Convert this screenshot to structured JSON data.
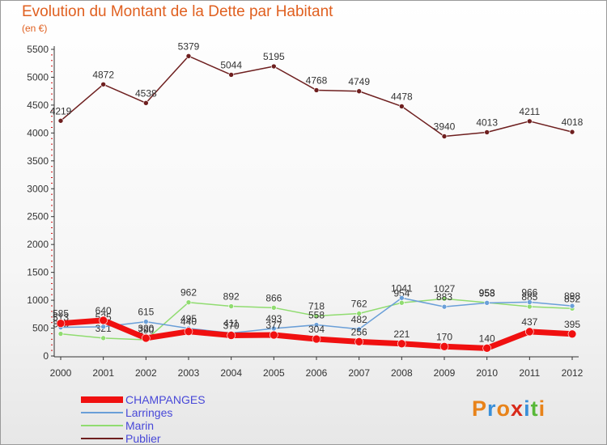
{
  "title": "Evolution du Montant de la Dette par Habitant",
  "subtitle": "(en €)",
  "logo": {
    "text": "Proxiti",
    "letter_colors": [
      "#e8831a",
      "#3a8fd8",
      "#e8831a",
      "#d82a1a",
      "#3a8fd8",
      "#58b838",
      "#e8831a"
    ]
  },
  "chart_data": {
    "type": "line",
    "x": [
      "2000",
      "2001",
      "2002",
      "2003",
      "2004",
      "2005",
      "2006",
      "2007",
      "2008",
      "2009",
      "2010",
      "2011",
      "2012"
    ],
    "ylim": [
      0,
      5500
    ],
    "yticks": [
      "0",
      "500",
      "1000",
      "1500",
      "2000",
      "2500",
      "3000",
      "3500",
      "4000",
      "4500",
      "5000",
      "5500"
    ],
    "xlabel": "",
    "ylabel": "",
    "grid": false,
    "legend_position": "bottom-left",
    "series": [
      {
        "name": "Publier",
        "color": "#6e1f1f",
        "values": [
          4219,
          4872,
          4538,
          5379,
          5044,
          5195,
          4768,
          4749,
          4478,
          3940,
          4013,
          4211,
          4018
        ],
        "labels": [
          "4219",
          "4872",
          "4538",
          "5379",
          "5044",
          "5195",
          "4768",
          "4749",
          "4478",
          "3940",
          "4013",
          "4211",
          "4018"
        ]
      },
      {
        "name": "Marin",
        "color": "#90dc70",
        "values": [
          398,
          321,
          290,
          962,
          892,
          866,
          718,
          762,
          954,
          1027,
          958,
          885,
          852
        ],
        "labels": [
          "398",
          "321",
          "290",
          "962",
          "892",
          "866",
          "718",
          "762",
          "954",
          "1027",
          "958",
          "885",
          "852"
        ]
      },
      {
        "name": "Larringes",
        "color": "#6a9fd8",
        "values": [
          513,
          525,
          615,
          495,
          411,
          493,
          558,
          482,
          1041,
          883,
          953,
          966,
          898
        ],
        "labels": [
          "513",
          "525",
          "615",
          "495",
          "411",
          "493",
          "558",
          "482",
          "1041",
          "883",
          "953",
          "966",
          "898"
        ]
      },
      {
        "name": "CHAMPANGES",
        "color": "#f01010",
        "values": [
          585,
          640,
          320,
          440,
          370,
          377,
          304,
          256,
          221,
          170,
          140,
          437,
          395
        ],
        "labels": [
          "585",
          "640",
          "320",
          "440",
          "370",
          "377",
          "304",
          "256",
          "221",
          "170",
          "140",
          "437",
          "395"
        ]
      }
    ],
    "legend": [
      "CHAMPANGES",
      "Larringes",
      "Marin",
      "Publier"
    ]
  }
}
